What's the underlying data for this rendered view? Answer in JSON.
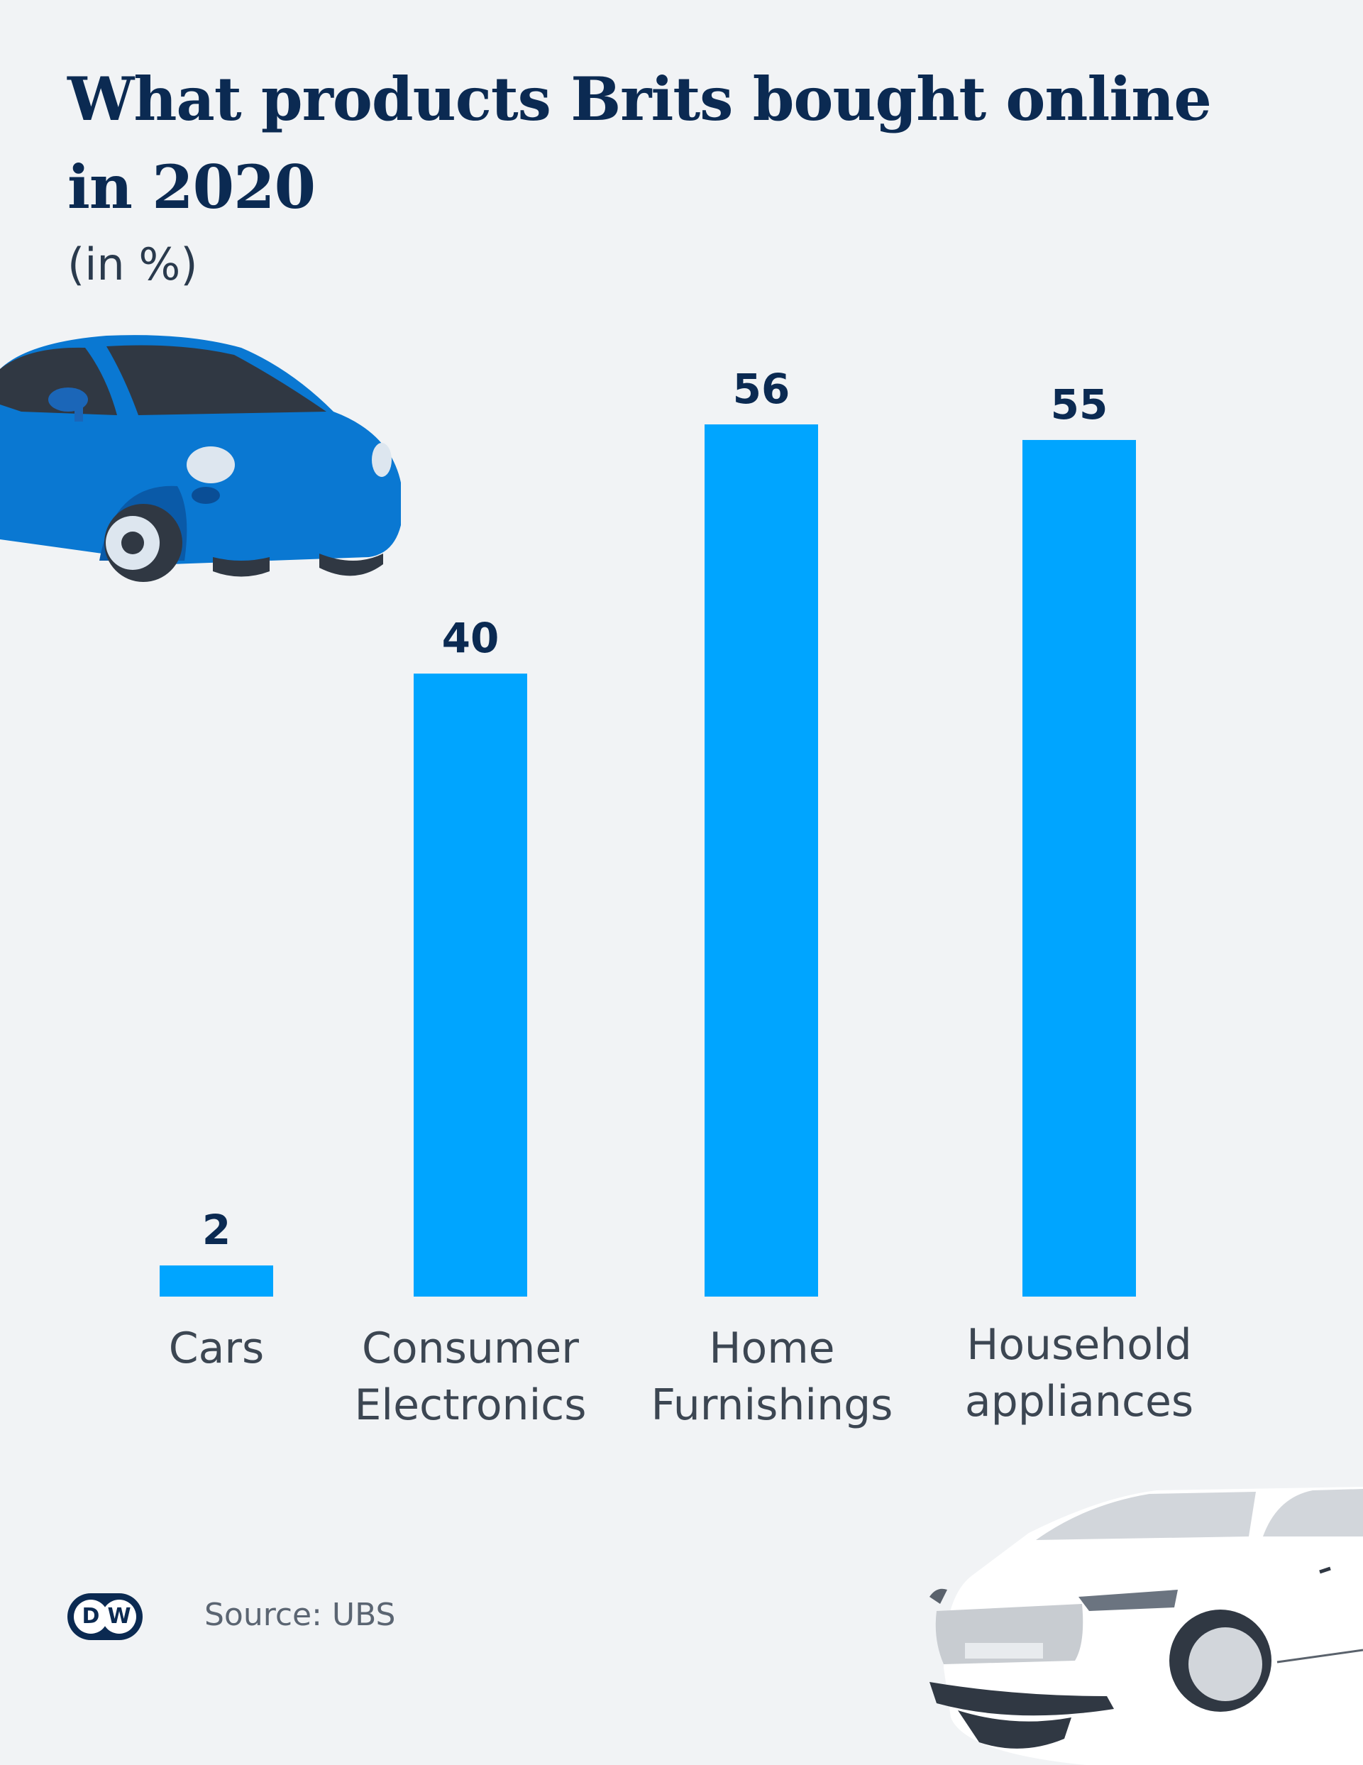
{
  "header": {
    "title": "What products Brits bought online in 2020",
    "subtitle": "(in %)"
  },
  "footer": {
    "logo_text": "DW",
    "source": "Source: UBS"
  },
  "colors": {
    "bar": "#00a5ff",
    "value_text": "#0b2a52",
    "label_text": "#3c4652"
  },
  "icons": [
    "blue-car-icon",
    "grey-car-icon",
    "dw-logo-icon"
  ],
  "chart_data": {
    "type": "bar",
    "title": "What products Brits bought online in 2020",
    "subtitle": "(in %)",
    "categories": [
      "Cars",
      "Consumer Electronics",
      "Home Furnishings",
      "Household appliances"
    ],
    "category_lines": [
      [
        "Cars"
      ],
      [
        "Consumer",
        "Electronics"
      ],
      [
        "Home",
        "Furnishings"
      ],
      [
        "Household",
        "appliances"
      ]
    ],
    "values": [
      2,
      40,
      56,
      55
    ],
    "ylim": [
      0,
      56
    ],
    "grid": false,
    "legend": "none",
    "xlabel": "",
    "ylabel": ""
  }
}
